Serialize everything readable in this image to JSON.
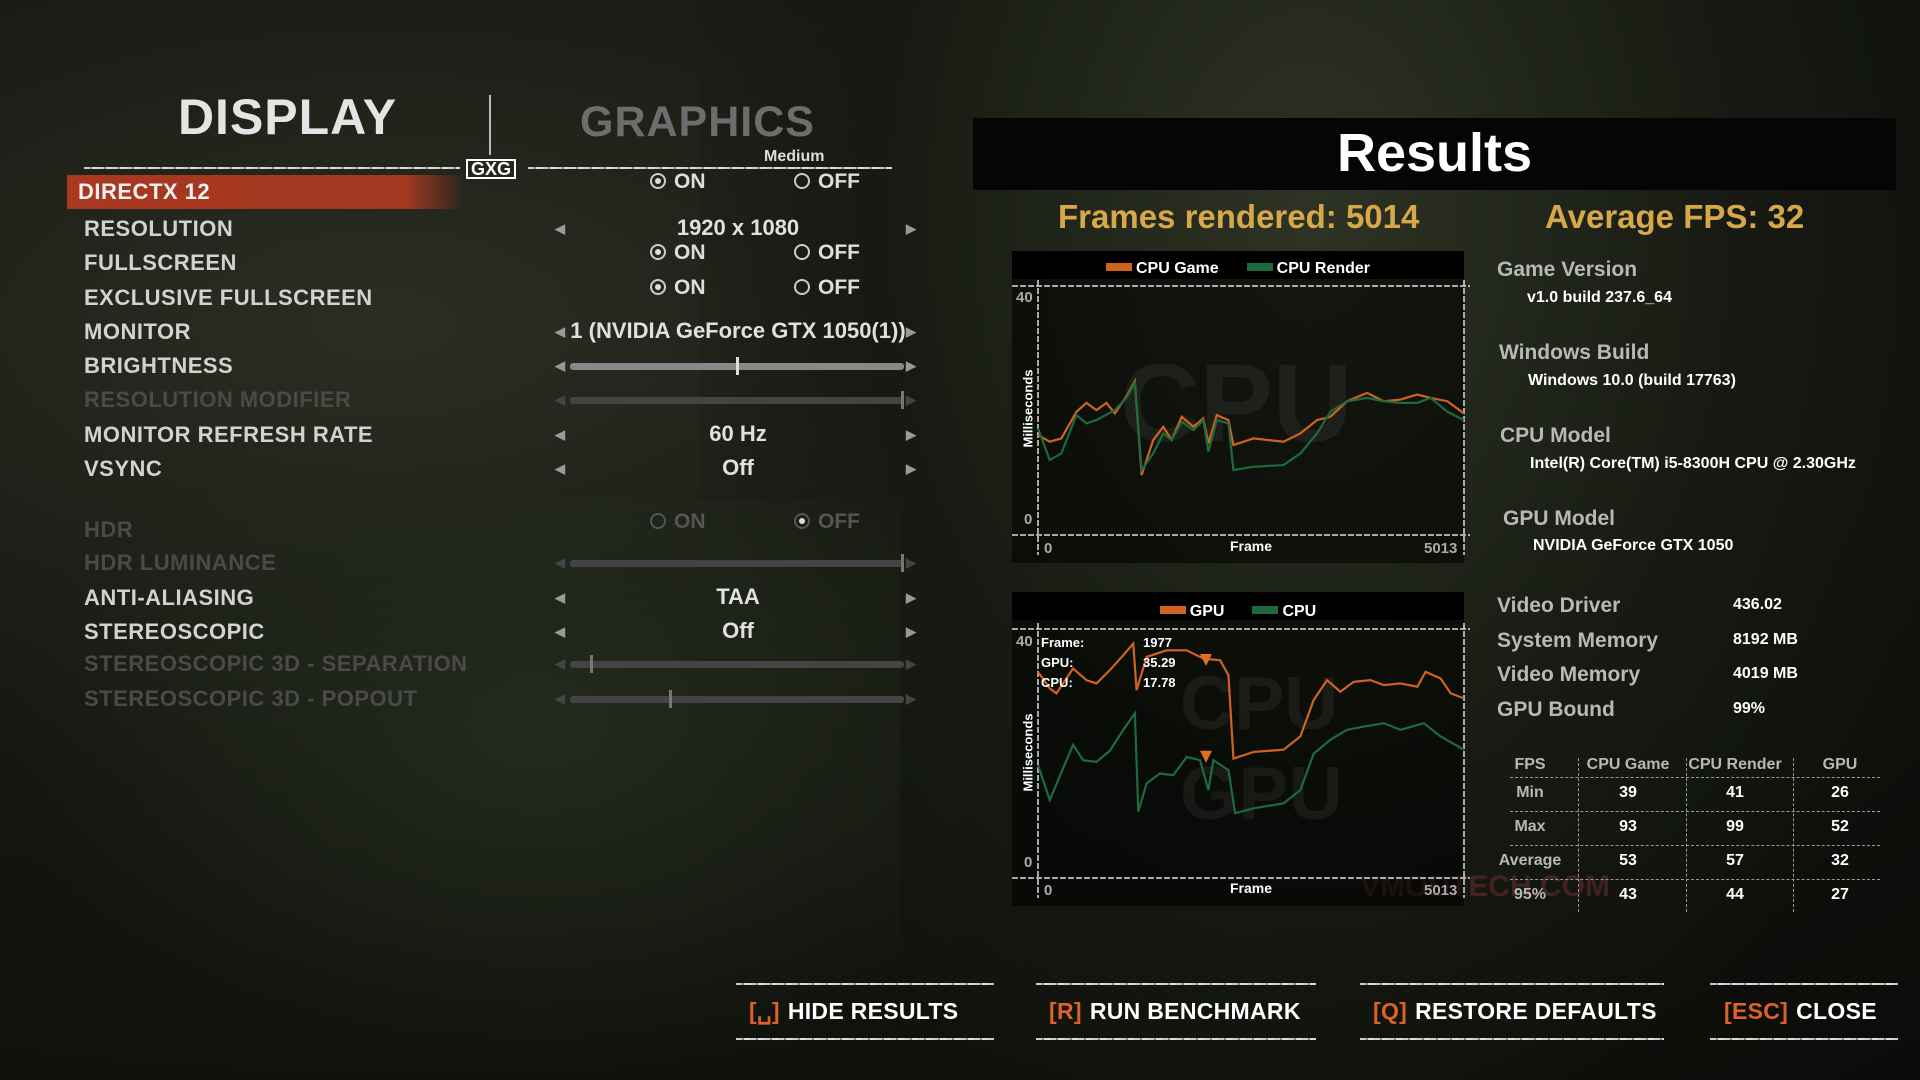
{
  "tabs": {
    "display": "DISPLAY",
    "graphics": "GRAPHICS",
    "preset": "Medium",
    "logo": "GXG"
  },
  "settings": [
    {
      "label": "DIRECTX 12",
      "type": "radio",
      "on": "ON",
      "off": "OFF",
      "selected": "on",
      "enabled": true,
      "highlighted": true
    },
    {
      "label": "RESOLUTION",
      "type": "select",
      "value": "1920 x 1080",
      "enabled": true
    },
    {
      "label": "FULLSCREEN",
      "type": "radio",
      "on": "ON",
      "off": "OFF",
      "selected": "on",
      "enabled": true
    },
    {
      "label": "EXCLUSIVE FULLSCREEN",
      "type": "radio",
      "on": "ON",
      "off": "OFF",
      "selected": "on",
      "enabled": true
    },
    {
      "label": "MONITOR",
      "type": "select",
      "value": "1 (NVIDIA GeForce GTX 1050(1))",
      "enabled": true
    },
    {
      "label": "BRIGHTNESS",
      "type": "slider",
      "level": 0.5,
      "enabled": true
    },
    {
      "label": "RESOLUTION MODIFIER",
      "type": "slider",
      "level": 1.0,
      "enabled": false
    },
    {
      "label": "MONITOR REFRESH RATE",
      "type": "select",
      "value": "60 Hz",
      "enabled": true
    },
    {
      "label": "VSYNC",
      "type": "select",
      "value": "Off",
      "enabled": true
    },
    {
      "label": "HDR",
      "type": "radio",
      "on": "ON",
      "off": "OFF",
      "selected": "off",
      "enabled": false
    },
    {
      "label": "HDR LUMINANCE",
      "type": "slider",
      "level": 1.0,
      "enabled": false
    },
    {
      "label": "ANTI-ALIASING",
      "type": "select",
      "value": "TAA",
      "enabled": true
    },
    {
      "label": "STEREOSCOPIC",
      "type": "select",
      "value": "Off",
      "enabled": true
    },
    {
      "label": "STEREOSCOPIC 3D - SEPARATION",
      "type": "slider",
      "level": 0.06,
      "enabled": false
    },
    {
      "label": "STEREOSCOPIC 3D - POPOUT",
      "type": "slider",
      "level": 0.3,
      "enabled": false
    }
  ],
  "results": {
    "title": "Results",
    "frames_rendered": "Frames rendered: 5014",
    "average_fps": "Average FPS: 32",
    "info": [
      {
        "label": "Game Version",
        "value": "v1.0 build 237.6_64"
      },
      {
        "label": "Windows Build",
        "value": "Windows 10.0 (build 17763)"
      },
      {
        "label": "CPU Model",
        "value": "Intel(R) Core(TM) i5-8300H CPU @ 2.30GHz"
      },
      {
        "label": "GPU Model",
        "value": "NVIDIA GeForce GTX 1050"
      }
    ],
    "stats": [
      {
        "label": "Video Driver",
        "value": "436.02"
      },
      {
        "label": "System Memory",
        "value": "8192 MB"
      },
      {
        "label": "Video Memory",
        "value": "4019 MB"
      },
      {
        "label": "GPU Bound",
        "value": "99%"
      }
    ],
    "table": {
      "headers": [
        "FPS",
        "CPU Game",
        "CPU Render",
        "GPU"
      ],
      "rows": [
        [
          "Min",
          "39",
          "41",
          "26"
        ],
        [
          "Max",
          "93",
          "99",
          "52"
        ],
        [
          "Average",
          "53",
          "57",
          "32"
        ],
        [
          "95%",
          "43",
          "44",
          "27"
        ]
      ]
    },
    "watermark": "VMODTECH.COM"
  },
  "chart_data": [
    {
      "type": "line",
      "ylabel": "Milliseconds",
      "xlabel": "Frame",
      "xlim": [
        0,
        5013
      ],
      "ylim": [
        0,
        40
      ],
      "xticks": [
        "0",
        "5013"
      ],
      "yticks": [
        "0",
        "40"
      ],
      "background_label": "CPU",
      "legend": "top",
      "series": [
        {
          "name": "CPU Game",
          "color": "#d0631f",
          "points": [
            [
              0,
              15.3
            ],
            [
              138,
              14.1
            ],
            [
              275,
              14.7
            ],
            [
              452,
              19.5
            ],
            [
              570,
              21.1
            ],
            [
              688,
              19.8
            ],
            [
              806,
              21.1
            ],
            [
              904,
              19.2
            ],
            [
              1042,
              22.3
            ],
            [
              1140,
              25.0
            ],
            [
              1219,
              8.1
            ],
            [
              1356,
              14.4
            ],
            [
              1474,
              16.8
            ],
            [
              1573,
              14.4
            ],
            [
              1691,
              18.6
            ],
            [
              1828,
              16.8
            ],
            [
              1946,
              18.3
            ],
            [
              2005,
              13.8
            ],
            [
              2104,
              18.9
            ],
            [
              2241,
              18.0
            ],
            [
              2300,
              13.5
            ],
            [
              2536,
              14.7
            ],
            [
              2890,
              14.1
            ],
            [
              3087,
              15.6
            ],
            [
              3283,
              18.0
            ],
            [
              3440,
              18.6
            ],
            [
              3637,
              21.4
            ],
            [
              3873,
              22.9
            ],
            [
              4070,
              21.4
            ],
            [
              4266,
              21.7
            ],
            [
              4463,
              22.6
            ],
            [
              4620,
              22.0
            ],
            [
              4817,
              21.4
            ],
            [
              5013,
              19.2
            ]
          ]
        },
        {
          "name": "CPU Render",
          "color": "#1d6b3c",
          "points": [
            [
              0,
              16.5
            ],
            [
              138,
              10.8
            ],
            [
              275,
              12.0
            ],
            [
              452,
              18.9
            ],
            [
              570,
              17.4
            ],
            [
              688,
              18.0
            ],
            [
              904,
              19.8
            ],
            [
              1042,
              22.0
            ],
            [
              1140,
              24.7
            ],
            [
              1219,
              9.0
            ],
            [
              1356,
              12.0
            ],
            [
              1474,
              15.6
            ],
            [
              1573,
              14.4
            ],
            [
              1691,
              17.7
            ],
            [
              1828,
              16.2
            ],
            [
              1946,
              18.0
            ],
            [
              2005,
              12.3
            ],
            [
              2104,
              18.0
            ],
            [
              2241,
              17.4
            ],
            [
              2300,
              9.0
            ],
            [
              2536,
              9.6
            ],
            [
              2890,
              9.9
            ],
            [
              3087,
              12.0
            ],
            [
              3283,
              15.6
            ],
            [
              3440,
              19.5
            ],
            [
              3637,
              21.4
            ],
            [
              3873,
              22.0
            ],
            [
              4070,
              21.4
            ],
            [
              4266,
              21.1
            ],
            [
              4463,
              21.1
            ],
            [
              4620,
              22.0
            ],
            [
              4817,
              19.5
            ],
            [
              5013,
              18.0
            ]
          ]
        }
      ]
    },
    {
      "type": "line",
      "ylabel": "Milliseconds",
      "xlabel": "Frame",
      "xlim": [
        0,
        5013
      ],
      "ylim": [
        0,
        40
      ],
      "xticks": [
        "0",
        "5013"
      ],
      "yticks": [
        "0",
        "40"
      ],
      "background_label": "CPU",
      "background_label_2": "GPU",
      "legend": "top",
      "cursor": {
        "frame_label": "Frame:",
        "frame": "1977",
        "gpu_label": "GPU:",
        "gpu": "35.29",
        "cpu_label": "CPU:",
        "cpu": "17.78"
      },
      "series": [
        {
          "name": "GPU",
          "color": "#d0631f",
          "points": [
            [
              0,
              34.6
            ],
            [
              138,
              31.6
            ],
            [
              216,
              30.7
            ],
            [
              413,
              35.2
            ],
            [
              570,
              33.1
            ],
            [
              688,
              32.5
            ],
            [
              845,
              34.9
            ],
            [
              1003,
              37.6
            ],
            [
              1121,
              39.7
            ],
            [
              1160,
              31.3
            ],
            [
              1278,
              37.3
            ],
            [
              1514,
              38.5
            ],
            [
              1750,
              38.5
            ],
            [
              1946,
              37.0
            ],
            [
              2143,
              36.7
            ],
            [
              2241,
              34.0
            ],
            [
              2300,
              18.9
            ],
            [
              2536,
              20.1
            ],
            [
              2890,
              20.5
            ],
            [
              3087,
              22.9
            ],
            [
              3244,
              29.5
            ],
            [
              3401,
              33.1
            ],
            [
              3558,
              31.0
            ],
            [
              3716,
              32.8
            ],
            [
              3912,
              33.1
            ],
            [
              4070,
              32.2
            ],
            [
              4266,
              32.5
            ],
            [
              4463,
              31.9
            ],
            [
              4561,
              34.6
            ],
            [
              4738,
              33.4
            ],
            [
              4856,
              30.7
            ],
            [
              5013,
              29.8
            ]
          ]
        },
        {
          "name": "CPU",
          "color": "#1d6b3c",
          "points": [
            [
              0,
              17.7
            ],
            [
              138,
              11.4
            ],
            [
              413,
              21.4
            ],
            [
              531,
              18.6
            ],
            [
              688,
              18.3
            ],
            [
              845,
              20.3
            ],
            [
              1003,
              24.1
            ],
            [
              1140,
              27.1
            ],
            [
              1180,
              9.3
            ],
            [
              1278,
              14.4
            ],
            [
              1435,
              16.2
            ],
            [
              1592,
              15.9
            ],
            [
              1750,
              19.2
            ],
            [
              1907,
              18.6
            ],
            [
              2005,
              13.2
            ],
            [
              2064,
              18.6
            ],
            [
              2241,
              16.8
            ],
            [
              2320,
              9.0
            ],
            [
              2536,
              9.9
            ],
            [
              2890,
              10.8
            ],
            [
              3087,
              13.2
            ],
            [
              3244,
              19.8
            ],
            [
              3440,
              22.3
            ],
            [
              3637,
              24.1
            ],
            [
              3834,
              24.7
            ],
            [
              4070,
              25.3
            ],
            [
              4266,
              24.1
            ],
            [
              4541,
              25.3
            ],
            [
              4738,
              22.9
            ],
            [
              5013,
              20.5
            ]
          ]
        }
      ]
    }
  ],
  "buttons": [
    {
      "key": "[␣]",
      "label": "HIDE RESULTS"
    },
    {
      "key": "[R]",
      "label": "RUN BENCHMARK"
    },
    {
      "key": "[Q]",
      "label": "RESTORE DEFAULTS"
    },
    {
      "key": "[ESC]",
      "label": "CLOSE"
    }
  ]
}
